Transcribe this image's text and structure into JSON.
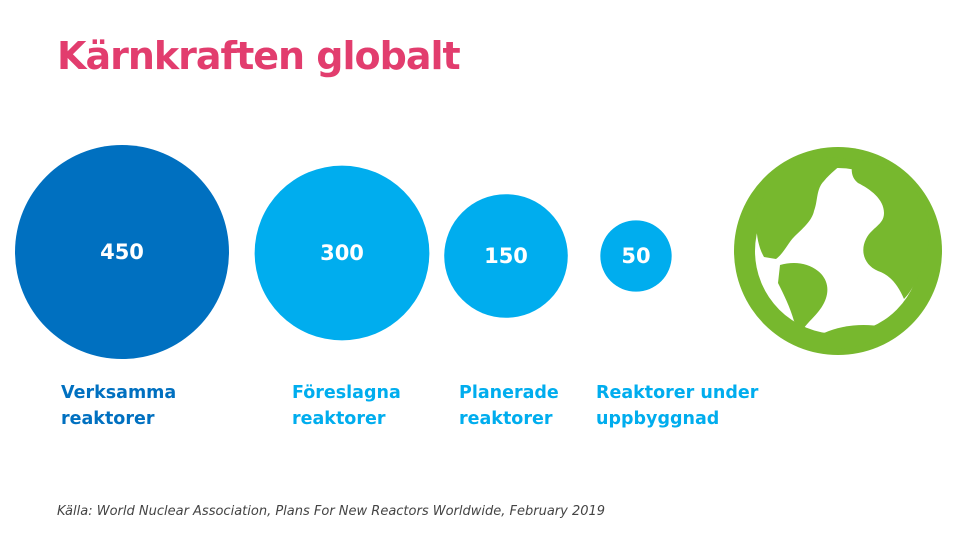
{
  "title": "Kärnkraften globalt",
  "colors": {
    "title": "#e23d6e",
    "dark_blue": "#0070c0",
    "light_blue": "#00adee",
    "globe_green": "#77b82e"
  },
  "chart_data": {
    "type": "bubble",
    "title": "Kärnkraften globalt",
    "series": [
      {
        "label_line1": "Verksamma",
        "label_line2": "reaktorer",
        "value": 450,
        "value_text": "450",
        "color": "#0070c0"
      },
      {
        "label_line1": "Föreslagna",
        "label_line2": "reaktorer",
        "value": 300,
        "value_text": "300",
        "color": "#00adee"
      },
      {
        "label_line1": "Planerade",
        "label_line2": "reaktorer",
        "value": 150,
        "value_text": "150",
        "color": "#00adee"
      },
      {
        "label_line1": "Reaktorer under",
        "label_line2": "uppbyggnad",
        "value": 50,
        "value_text": "50",
        "color": "#00adee"
      }
    ]
  },
  "globe_icon": "globe-icon",
  "source": "Källa: World Nuclear Association, Plans For New Reactors Worldwide, February 2019"
}
